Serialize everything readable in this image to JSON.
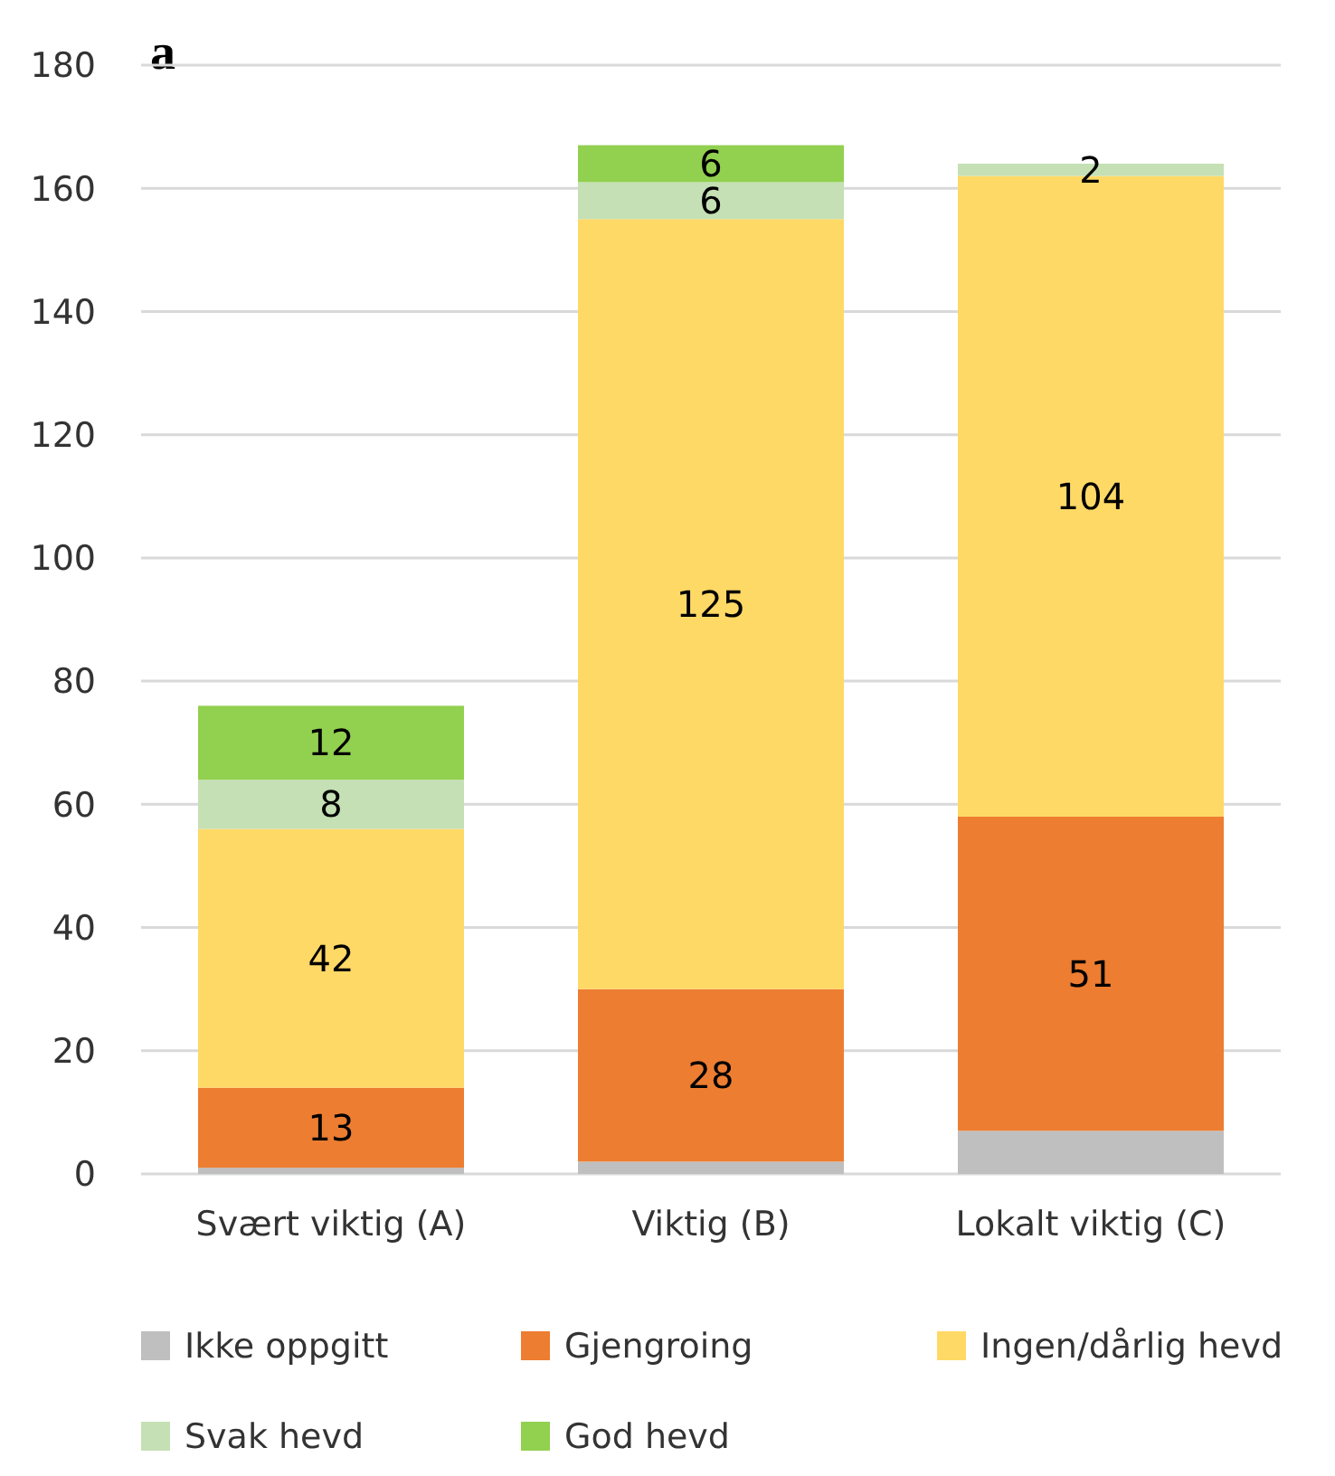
{
  "chart_data": {
    "type": "bar",
    "title": "a",
    "stacked": true,
    "categories": [
      "Svært viktig (A)",
      "Viktig (B)",
      "Lokalt viktig (C)"
    ],
    "series": [
      {
        "name": "Ikke oppgitt",
        "color": "#bfbfbf",
        "values": [
          1,
          2,
          7
        ],
        "value_labels": [
          null,
          null,
          null
        ]
      },
      {
        "name": "Gjengroing",
        "color": "#ed7d31",
        "values": [
          13,
          28,
          51
        ],
        "value_labels": [
          "13",
          "28",
          "51"
        ]
      },
      {
        "name": "Ingen/dårlig hevd",
        "color": "#ffd966",
        "values": [
          42,
          125,
          104
        ],
        "value_labels": [
          "42",
          "125",
          "104"
        ]
      },
      {
        "name": "Svak hevd",
        "color": "#c5e0b4",
        "values": [
          8,
          6,
          2
        ],
        "value_labels": [
          "8",
          "6",
          "2"
        ]
      },
      {
        "name": "God hevd",
        "color": "#92d050",
        "values": [
          12,
          6,
          null
        ],
        "value_labels": [
          "12",
          "6",
          null
        ]
      }
    ],
    "ylim": [
      0,
      180
    ],
    "yticks": [
      0,
      20,
      40,
      60,
      80,
      100,
      120,
      140,
      160,
      180
    ],
    "grid": "y",
    "legend": "bottom"
  }
}
